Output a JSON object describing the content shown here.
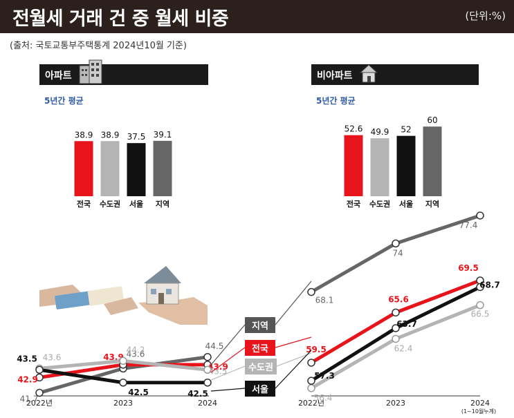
{
  "header": {
    "title": "전월세 거래 건 중 월세 비중",
    "unit": "(단위:%)",
    "source": "(출처: 국토교통부주택통계 2024년10월 기준)"
  },
  "colors": {
    "national": "#e8141c",
    "capital": "#b4b4b4",
    "seoul": "#111111",
    "regional": "#666666",
    "accent_blue": "#2e5aa6"
  },
  "panels": {
    "apartment": {
      "label": "아파트"
    },
    "non_apartment": {
      "label": "비아파트"
    },
    "average_label": "5년간 평균"
  },
  "legend": {
    "regional": "지역",
    "national": "전국",
    "capital": "수도권",
    "seoul": "서울"
  },
  "chart_data": [
    {
      "type": "bar",
      "title": "5년간 평균",
      "panel": "아파트",
      "categories": [
        "전국",
        "수도권",
        "서울",
        "지역"
      ],
      "values": [
        38.9,
        38.9,
        37.5,
        39.1
      ],
      "colors": [
        "#e8141c",
        "#b4b4b4",
        "#111111",
        "#666666"
      ]
    },
    {
      "type": "bar",
      "title": "5년간 평균",
      "panel": "비아파트",
      "categories": [
        "전국",
        "수도권",
        "서울",
        "지역"
      ],
      "values": [
        52.6,
        49.9,
        52,
        60
      ],
      "colors": [
        "#e8141c",
        "#b4b4b4",
        "#111111",
        "#666666"
      ]
    },
    {
      "type": "line",
      "panel": "아파트",
      "x": [
        "2022년",
        "2023",
        "2024"
      ],
      "series": [
        {
          "name": "지역",
          "values": [
            41.7,
            43.6,
            44.5
          ],
          "color": "#666666"
        },
        {
          "name": "전국",
          "values": [
            42.9,
            43.9,
            43.9
          ],
          "color": "#e8141c"
        },
        {
          "name": "수도권",
          "values": [
            43.6,
            44.2,
            43.5
          ],
          "color": "#b4b4b4"
        },
        {
          "name": "서울",
          "values": [
            43.5,
            42.5,
            42.5
          ],
          "color": "#111111"
        }
      ]
    },
    {
      "type": "line",
      "panel": "비아파트",
      "x": [
        "2022년",
        "2023",
        "2024"
      ],
      "x_note": "(1~10월누계)",
      "series": [
        {
          "name": "지역",
          "values": [
            68.1,
            74,
            77.4
          ],
          "color": "#666666"
        },
        {
          "name": "전국",
          "values": [
            59.5,
            65.6,
            69.5
          ],
          "color": "#e8141c"
        },
        {
          "name": "수도권",
          "values": [
            56.4,
            62.4,
            66.5
          ],
          "color": "#b4b4b4"
        },
        {
          "name": "서울",
          "values": [
            57.3,
            63.7,
            68.7
          ],
          "color": "#111111"
        }
      ]
    }
  ]
}
